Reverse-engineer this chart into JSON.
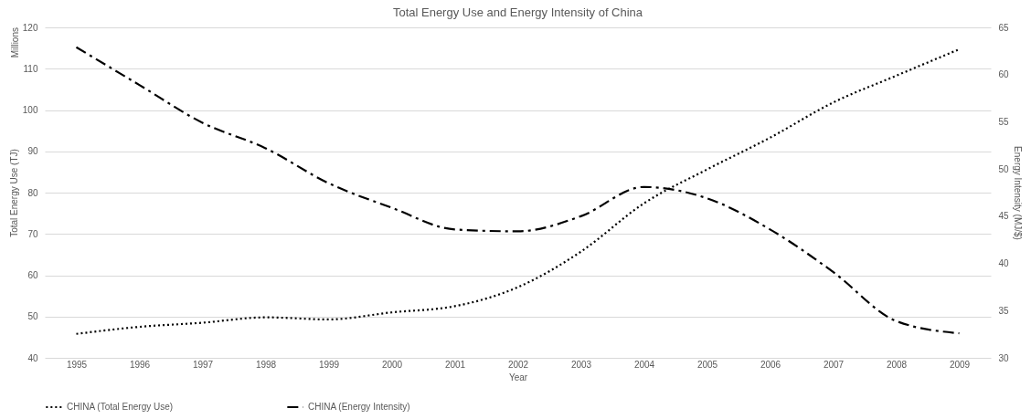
{
  "chart_data": {
    "type": "line",
    "title": "Total Energy Use and Energy Intensity of China",
    "xlabel": "Year",
    "ylabel": "Total Energy Use (TJ)",
    "y2label": "Energy Intensity (MJ/$)",
    "annotations": [
      "Millions"
    ],
    "categories": [
      "1995",
      "1996",
      "1997",
      "1998",
      "1999",
      "2000",
      "2001",
      "2002",
      "2003",
      "2004",
      "2005",
      "2006",
      "2007",
      "2008",
      "2009"
    ],
    "series": [
      {
        "name": "CHINA (Total Energy Use)",
        "color": "#000000",
        "line_style": "dotted",
        "values": [
          45.8,
          47.5,
          48.5,
          49.8,
          49.3,
          51,
          52.5,
          57.1,
          65.7,
          77.4,
          85.6,
          93.3,
          101.8,
          108.3,
          114.7
        ]
      },
      {
        "name": "CHINA (Energy Intensity)",
        "color": "#000000",
        "line_style": "dashed",
        "axis": "y2",
        "values": [
          62.9,
          58.9,
          54.9,
          52.2,
          48.5,
          45.9,
          43.6,
          43.4,
          45.0,
          48.1,
          46.9,
          43.6,
          39.1,
          33.9,
          32.6
        ]
      }
    ],
    "ylim": [
      40,
      120
    ],
    "yticks": [
      40,
      50,
      60,
      70,
      80,
      90,
      100,
      110,
      120
    ],
    "y2lim": [
      30,
      65
    ],
    "y2ticks": [
      30,
      35,
      40,
      45,
      50,
      55,
      60,
      65
    ],
    "grid": "y",
    "legend": "bottom",
    "marker": "none"
  }
}
